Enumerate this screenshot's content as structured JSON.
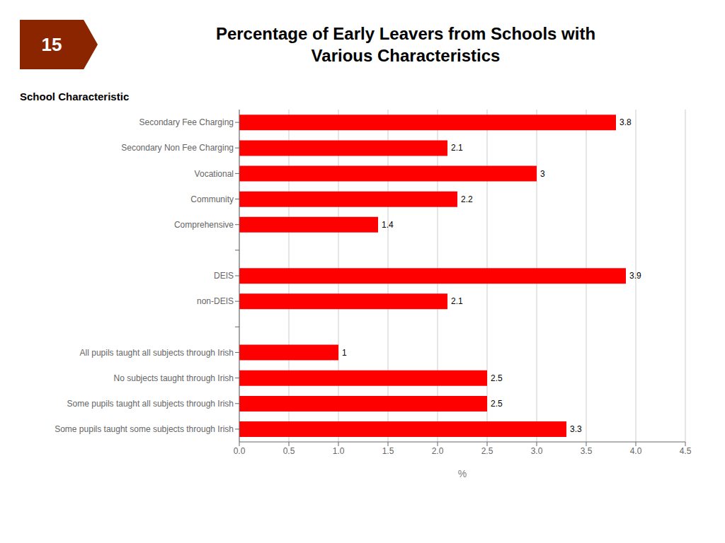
{
  "chart_data": {
    "type": "bar",
    "orientation": "horizontal",
    "title": "Percentage of Early Leavers from Schools with\nVarious Characteristics",
    "xlabel": "%",
    "ylabel": "School Characteristic",
    "annotations": [
      {
        "text": "15",
        "color": "#8B2500"
      }
    ],
    "categories": [
      "Secondary Fee Charging",
      "Secondary Non Fee Charging",
      "Vocational",
      "Community",
      "Comprehensive",
      null,
      "DEIS",
      "non-DEIS",
      null,
      "All pupils taught all subjects through Irish",
      "No subjects taught through Irish",
      "Some pupils taught all subjects through Irish",
      "Some pupils taught some subjects through Irish"
    ],
    "values": [
      3.8,
      2.1,
      3.0,
      2.2,
      1.4,
      null,
      3.9,
      2.1,
      null,
      1.0,
      2.5,
      2.5,
      3.3
    ],
    "color": "#FF0000",
    "xlim": [
      0,
      4.5
    ],
    "xticks": [
      {
        "value": 0,
        "label": "0.0"
      },
      0.5,
      {
        "value": 1,
        "label": "1.0"
      },
      1.5,
      {
        "value": 2,
        "label": "2.0"
      },
      2.5,
      {
        "value": 3,
        "label": "3.0"
      },
      3.5,
      {
        "value": 4,
        "label": "4.0"
      },
      4.5
    ],
    "grid": true,
    "data_labels": true
  }
}
